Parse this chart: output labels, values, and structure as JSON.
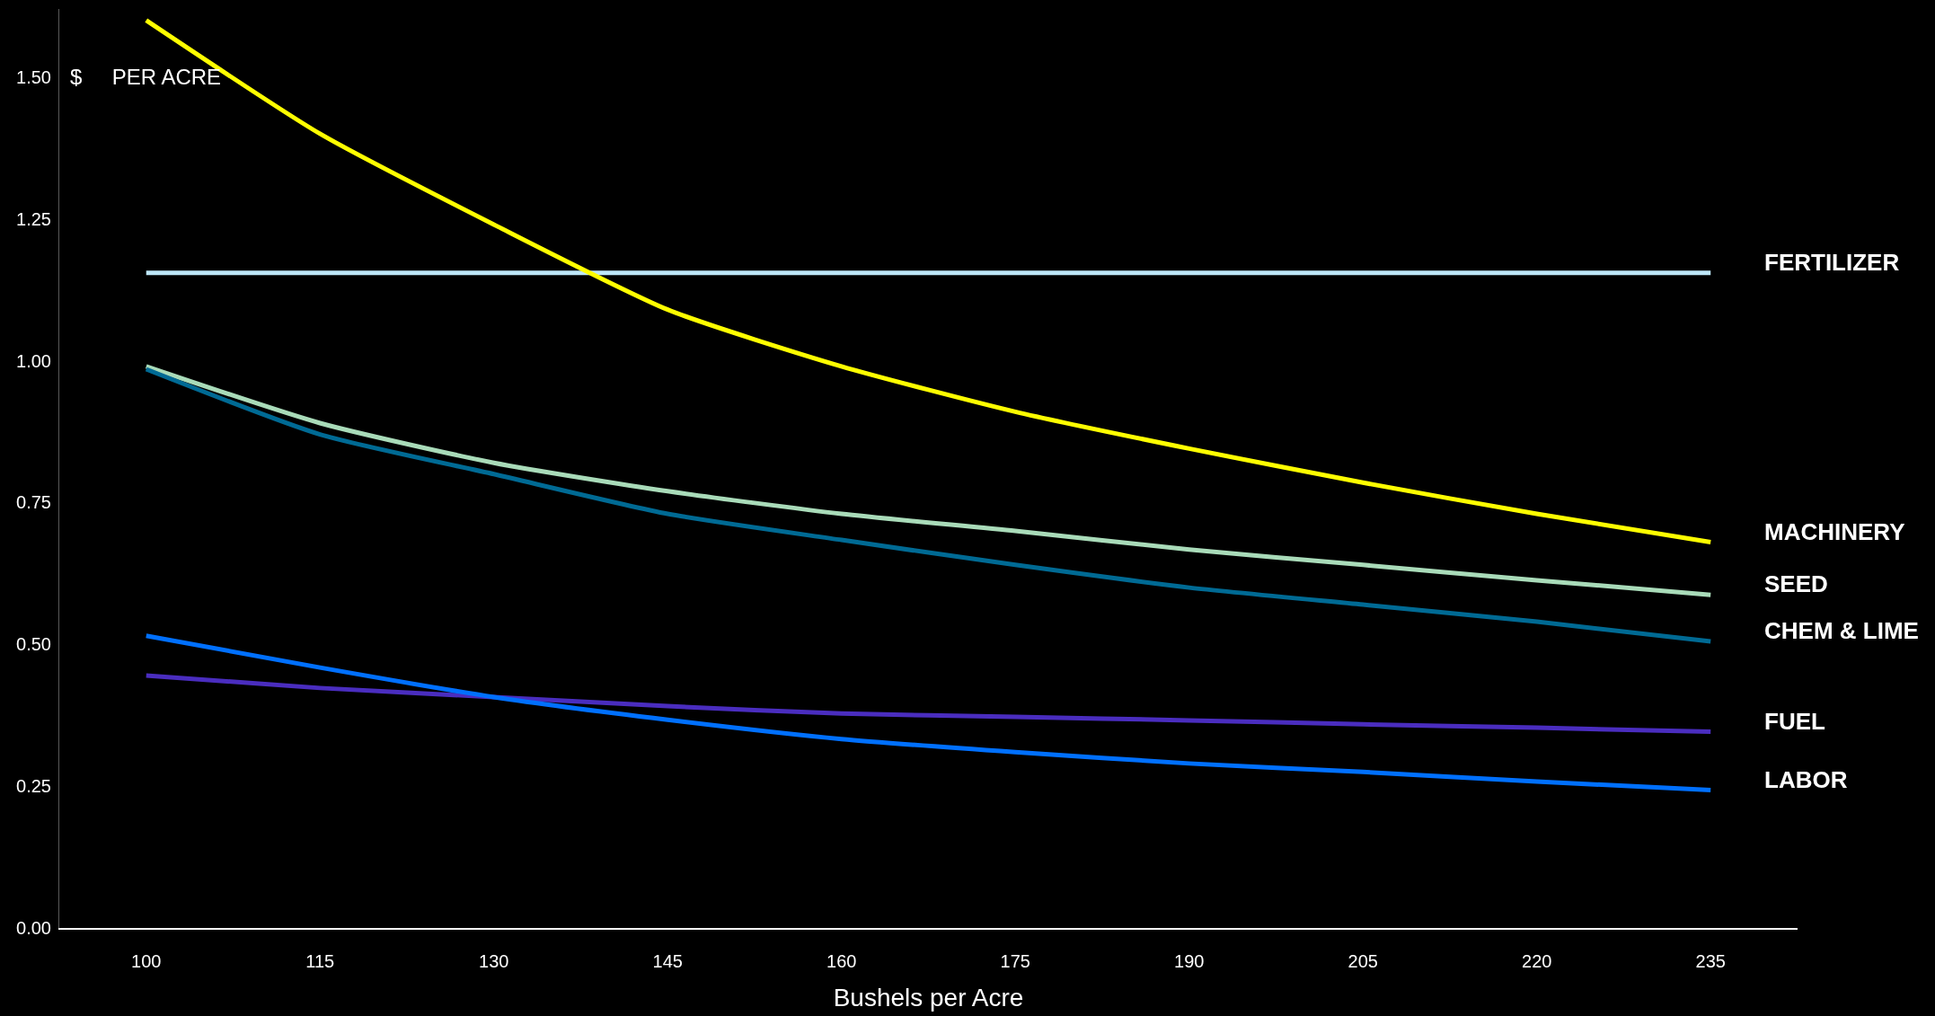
{
  "chart_data": {
    "type": "line",
    "ylabel": "$     PER ACRE",
    "xlabel": "Bushels per Acre",
    "x": [
      100,
      115,
      130,
      145,
      160,
      175,
      190,
      205,
      220,
      235
    ],
    "xlim": [
      92.5,
      242.5
    ],
    "xticks": [
      100,
      115,
      130,
      145,
      160,
      175,
      190,
      205,
      220,
      235
    ],
    "ylim": [
      0,
      1.62
    ],
    "yticks": [
      {
        "value": 0,
        "label": "0.00"
      },
      {
        "value": 0.25,
        "label": "0.25"
      },
      {
        "value": 0.5,
        "label": "0.50"
      },
      {
        "value": 0.75,
        "label": "0.75"
      },
      {
        "value": 1,
        "label": "1.00"
      },
      {
        "value": 1.25,
        "label": "1.25"
      },
      {
        "value": 1.5,
        "label": "1.50"
      }
    ],
    "grid": false,
    "legend": false,
    "marker": "none",
    "line_style": "solid",
    "series": [
      {
        "name": "FERTILIZER",
        "color": "#bde6f7",
        "values": [
          1.155,
          1.155,
          1.155,
          1.155,
          1.155,
          1.155,
          1.155,
          1.155,
          1.155,
          1.155
        ]
      },
      {
        "name": "MACHINERY",
        "color": "#ffff00",
        "values": [
          1.6,
          1.4,
          1.24,
          1.09,
          0.99,
          0.91,
          0.845,
          0.785,
          0.73,
          0.68
        ]
      },
      {
        "name": "SEED",
        "color": "#a9dbb9",
        "values": [
          0.99,
          0.89,
          0.82,
          0.77,
          0.73,
          0.7,
          0.667,
          0.64,
          0.613,
          0.587
        ]
      },
      {
        "name": "CHEM & LIME",
        "color": "#006a94",
        "values": [
          0.985,
          0.87,
          0.8,
          0.73,
          0.684,
          0.64,
          0.6,
          0.57,
          0.54,
          0.505
        ]
      },
      {
        "name": "FUEL",
        "color": "#4a2dbf",
        "values": [
          0.445,
          0.423,
          0.407,
          0.391,
          0.378,
          0.372,
          0.366,
          0.359,
          0.353,
          0.346
        ]
      },
      {
        "name": "LABOR",
        "color": "#0070ff",
        "values": [
          0.515,
          0.459,
          0.407,
          0.367,
          0.333,
          0.31,
          0.29,
          0.275,
          0.258,
          0.243
        ]
      }
    ]
  }
}
